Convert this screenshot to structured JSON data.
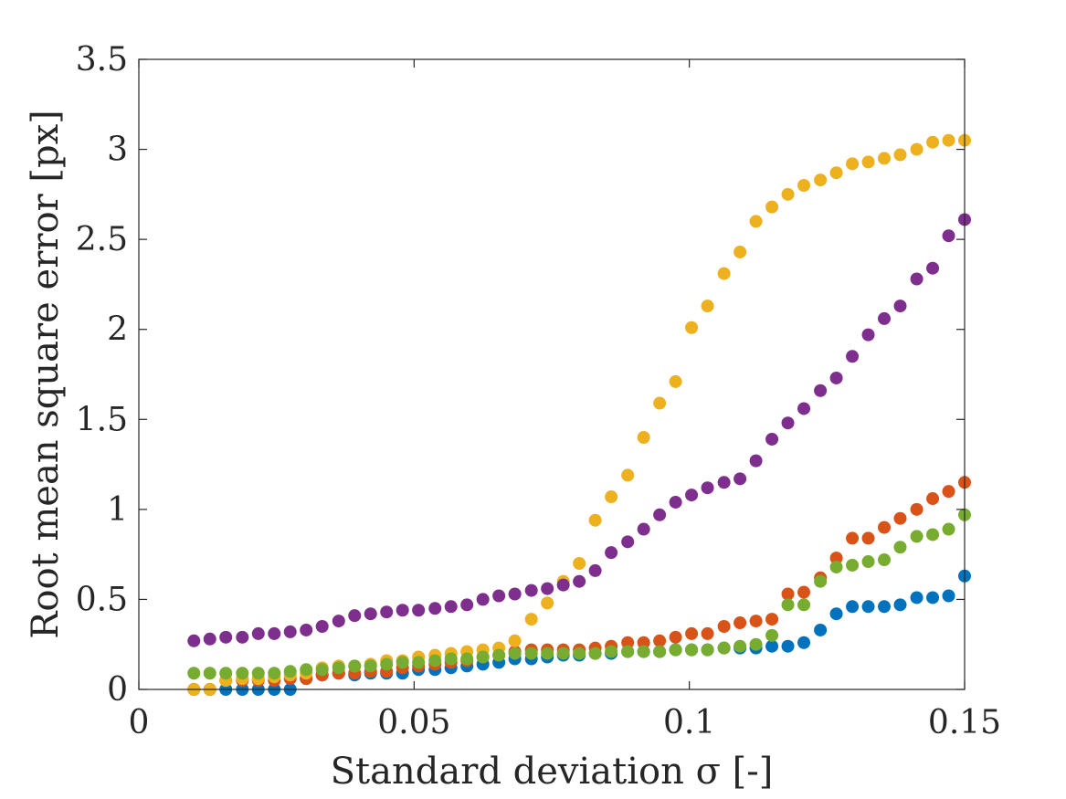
{
  "chart_data": {
    "type": "scatter",
    "title": "",
    "xlabel": "Standard deviation σ [-]",
    "ylabel": "Root mean square error [px]",
    "xlim": [
      0,
      0.15
    ],
    "ylim": [
      0,
      3.5
    ],
    "xticks": [
      0,
      0.05,
      0.1,
      0.15
    ],
    "xtick_labels": [
      "0",
      "0.05",
      "0.1",
      "0.15"
    ],
    "yticks": [
      0,
      0.5,
      1,
      1.5,
      2,
      2.5,
      3,
      3.5
    ],
    "ytick_labels": [
      "0",
      "0.5",
      "1",
      "1.5",
      "2",
      "2.5",
      "3",
      "3.5"
    ],
    "grid": false,
    "legend": "none",
    "x": [
      0.01,
      0.0129,
      0.0158,
      0.0188,
      0.0217,
      0.0246,
      0.0275,
      0.0304,
      0.0333,
      0.0363,
      0.0392,
      0.0421,
      0.045,
      0.0479,
      0.0508,
      0.0538,
      0.0567,
      0.0596,
      0.0625,
      0.0654,
      0.0683,
      0.0713,
      0.0742,
      0.0771,
      0.08,
      0.0829,
      0.0858,
      0.0888,
      0.0917,
      0.0946,
      0.0975,
      0.1004,
      0.1033,
      0.1063,
      0.1092,
      0.1121,
      0.115,
      0.1179,
      0.1208,
      0.1238,
      0.1267,
      0.1296,
      0.1325,
      0.1354,
      0.1383,
      0.1413,
      0.1442,
      0.1471,
      0.15
    ],
    "series": [
      {
        "color": "#0072BD",
        "values": [
          0.0,
          0.0,
          0.0,
          0.0,
          0.0,
          0.0,
          0.0,
          0.06,
          0.08,
          0.09,
          0.08,
          0.09,
          0.09,
          0.09,
          0.11,
          0.11,
          0.12,
          0.13,
          0.14,
          0.15,
          0.17,
          0.17,
          0.18,
          0.19,
          0.19,
          0.2,
          0.2,
          0.21,
          0.21,
          0.21,
          0.22,
          0.22,
          0.22,
          0.23,
          0.23,
          0.23,
          0.24,
          0.24,
          0.26,
          0.33,
          0.42,
          0.46,
          0.46,
          0.46,
          0.47,
          0.51,
          0.51,
          0.52,
          0.63
        ]
      },
      {
        "color": "#D95319",
        "values": [
          0.0,
          0.0,
          0.05,
          0.05,
          0.05,
          0.05,
          0.06,
          0.06,
          0.08,
          0.09,
          0.09,
          0.1,
          0.1,
          0.12,
          0.13,
          0.14,
          0.15,
          0.16,
          0.18,
          0.19,
          0.21,
          0.22,
          0.22,
          0.22,
          0.22,
          0.23,
          0.24,
          0.26,
          0.26,
          0.27,
          0.29,
          0.31,
          0.31,
          0.35,
          0.37,
          0.38,
          0.39,
          0.53,
          0.54,
          0.62,
          0.73,
          0.84,
          0.84,
          0.9,
          0.95,
          1.0,
          1.06,
          1.1,
          1.15
        ]
      },
      {
        "color": "#EDB120",
        "values": [
          0.0,
          0.0,
          0.05,
          0.06,
          0.06,
          0.07,
          0.08,
          0.09,
          0.12,
          0.13,
          0.13,
          0.14,
          0.16,
          0.16,
          0.18,
          0.19,
          0.2,
          0.21,
          0.22,
          0.23,
          0.27,
          0.39,
          0.48,
          0.6,
          0.7,
          0.94,
          1.07,
          1.19,
          1.4,
          1.59,
          1.71,
          2.01,
          2.13,
          2.31,
          2.43,
          2.6,
          2.68,
          2.75,
          2.8,
          2.83,
          2.87,
          2.92,
          2.93,
          2.95,
          2.97,
          3.0,
          3.04,
          3.05,
          3.05
        ]
      },
      {
        "color": "#7E2F8E",
        "values": [
          0.27,
          0.28,
          0.29,
          0.29,
          0.31,
          0.31,
          0.32,
          0.33,
          0.35,
          0.38,
          0.41,
          0.42,
          0.43,
          0.44,
          0.44,
          0.45,
          0.46,
          0.47,
          0.5,
          0.52,
          0.53,
          0.55,
          0.56,
          0.58,
          0.6,
          0.66,
          0.76,
          0.82,
          0.89,
          0.97,
          1.04,
          1.08,
          1.12,
          1.15,
          1.17,
          1.27,
          1.39,
          1.48,
          1.56,
          1.66,
          1.73,
          1.85,
          1.97,
          2.06,
          2.13,
          2.28,
          2.34,
          2.52,
          2.61
        ]
      },
      {
        "color": "#77AC30",
        "values": [
          0.09,
          0.09,
          0.09,
          0.09,
          0.09,
          0.09,
          0.1,
          0.11,
          0.11,
          0.12,
          0.13,
          0.13,
          0.14,
          0.15,
          0.15,
          0.16,
          0.17,
          0.17,
          0.18,
          0.19,
          0.2,
          0.2,
          0.2,
          0.2,
          0.2,
          0.2,
          0.21,
          0.21,
          0.21,
          0.21,
          0.22,
          0.22,
          0.22,
          0.23,
          0.24,
          0.25,
          0.3,
          0.47,
          0.47,
          0.6,
          0.68,
          0.69,
          0.71,
          0.72,
          0.79,
          0.85,
          0.86,
          0.89,
          0.97
        ]
      }
    ]
  }
}
